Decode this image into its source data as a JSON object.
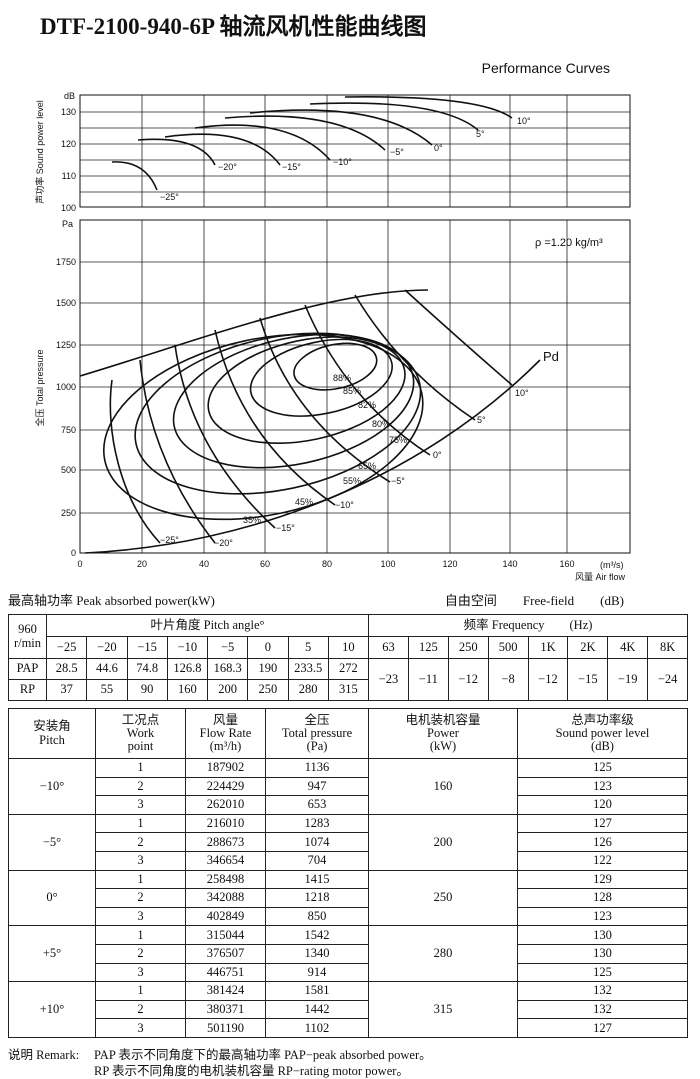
{
  "header": {
    "title": "DTF-2100-940-6P 轴流风机性能曲线图",
    "subtitle": "Performance Curves"
  },
  "sound_chart": {
    "unit": "dB",
    "axis_label": "声功率 Sound power level",
    "yticks": [
      "130",
      "120",
      "110",
      "100"
    ],
    "curve_labels": [
      "−25°",
      "−20°",
      "−15°",
      "−10°",
      "−5°",
      "0°",
      "5°",
      "10°"
    ]
  },
  "pressure_chart": {
    "unit": "Pa",
    "axis_label": "全压 Total pressure",
    "yticks": [
      "1750",
      "1500",
      "1250",
      "1000",
      "750",
      "500",
      "250",
      "0"
    ],
    "xticks": [
      "0",
      "20",
      "40",
      "60",
      "80",
      "100",
      "120",
      "140",
      "160"
    ],
    "x_unit": "(m³/s)",
    "x_label": "风量 Air flow",
    "density": "ρ =1.20 kg/m³",
    "pd_label": "Pd",
    "pitch_labels": [
      "−25°",
      "−20°",
      "−15°",
      "−10°",
      "−5°",
      "0°",
      "5°",
      "10°"
    ],
    "efficiency_labels": [
      "88%",
      "85%",
      "82%",
      "80%",
      "75%",
      "65%",
      "55%",
      "45%",
      "35%"
    ]
  },
  "peak_table": {
    "caption_left": "最高轴功率 Peak absorbed power(kW)",
    "caption_right": "自由空间　　Free-field　　(dB)",
    "speed": [
      "960",
      "r/min"
    ],
    "pitch_header": "叶片角度 Pitch angle°",
    "pitches": [
      "−25",
      "−20",
      "−15",
      "−10",
      "−5",
      "0",
      "5",
      "10"
    ],
    "pap_label": "PAP",
    "pap": [
      "28.5",
      "44.6",
      "74.8",
      "126.8",
      "168.3",
      "190",
      "233.5",
      "272"
    ],
    "rp_label": "RP",
    "rp": [
      "37",
      "55",
      "90",
      "160",
      "200",
      "250",
      "280",
      "315"
    ],
    "freq_header": "频率 Frequency　　(Hz)",
    "freqs": [
      "63",
      "125",
      "250",
      "500",
      "1K",
      "2K",
      "4K",
      "8K"
    ],
    "corrections": [
      "−23",
      "−11",
      "−12",
      "−8",
      "−12",
      "−15",
      "−19",
      "−24"
    ]
  },
  "work_table": {
    "headers": [
      [
        "安装角",
        "Pitch"
      ],
      [
        "工况点",
        "Work",
        "point"
      ],
      [
        "风量",
        "Flow Rate",
        "(m³/h)"
      ],
      [
        "全压",
        "Total pressure",
        "(Pa)"
      ],
      [
        "电机装机容量",
        "Power",
        "(kW)"
      ],
      [
        "总声功率级",
        "Sound power level",
        "(dB)"
      ]
    ],
    "groups": [
      {
        "pitch": "−10°",
        "power": "160",
        "points": [
          [
            "1",
            "187902",
            "1136",
            "125"
          ],
          [
            "2",
            "224429",
            "947",
            "123"
          ],
          [
            "3",
            "262010",
            "653",
            "120"
          ]
        ]
      },
      {
        "pitch": "−5°",
        "power": "200",
        "points": [
          [
            "1",
            "216010",
            "1283",
            "127"
          ],
          [
            "2",
            "288673",
            "1074",
            "126"
          ],
          [
            "3",
            "346654",
            "704",
            "122"
          ]
        ]
      },
      {
        "pitch": "0°",
        "power": "250",
        "points": [
          [
            "1",
            "258498",
            "1415",
            "129"
          ],
          [
            "2",
            "342088",
            "1218",
            "128"
          ],
          [
            "3",
            "402849",
            "850",
            "123"
          ]
        ]
      },
      {
        "pitch": "+5°",
        "power": "280",
        "points": [
          [
            "1",
            "315044",
            "1542",
            "130"
          ],
          [
            "2",
            "376507",
            "1340",
            "130"
          ],
          [
            "3",
            "446751",
            "914",
            "125"
          ]
        ]
      },
      {
        "pitch": "+10°",
        "power": "315",
        "points": [
          [
            "1",
            "381424",
            "1581",
            "132"
          ],
          [
            "2",
            "380371",
            "1442",
            "132"
          ],
          [
            "3",
            "501190",
            "1102",
            "127"
          ]
        ]
      }
    ]
  },
  "remark": {
    "label": "说明 Remark:",
    "lines": [
      "PAP 表示不同角度下的最高轴功率 PAP−peak absorbed power。",
      "RP 表示不同角度的电机装机容量 RP−rating motor power。"
    ]
  }
}
